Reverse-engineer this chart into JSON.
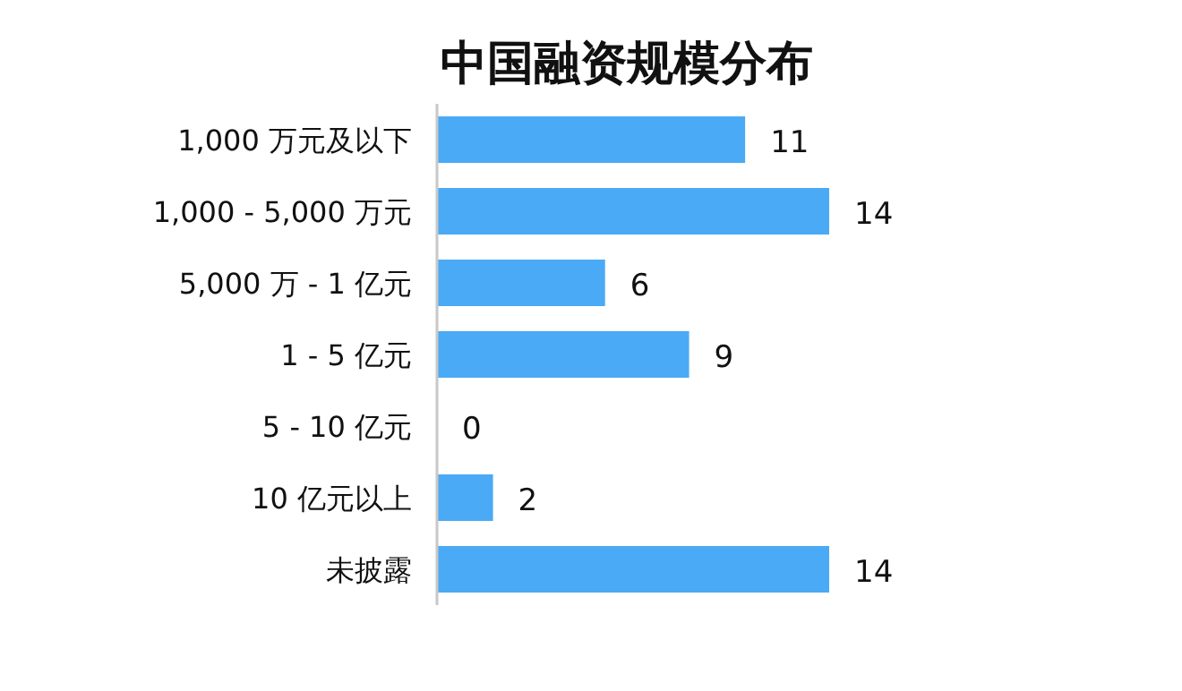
{
  "chart_data": {
    "type": "bar",
    "orientation": "horizontal",
    "title": "中国融资规模分布",
    "categories": [
      "1,000 万元及以下",
      "1,000 - 5,000 万元",
      "5,000 万 - 1 亿元",
      "1 - 5 亿元",
      "5 - 10 亿元",
      "10 亿元以上",
      "未披露"
    ],
    "values": [
      11,
      14,
      6,
      9,
      0,
      2,
      14
    ],
    "color": "#4baaf5",
    "data_labels": true
  }
}
